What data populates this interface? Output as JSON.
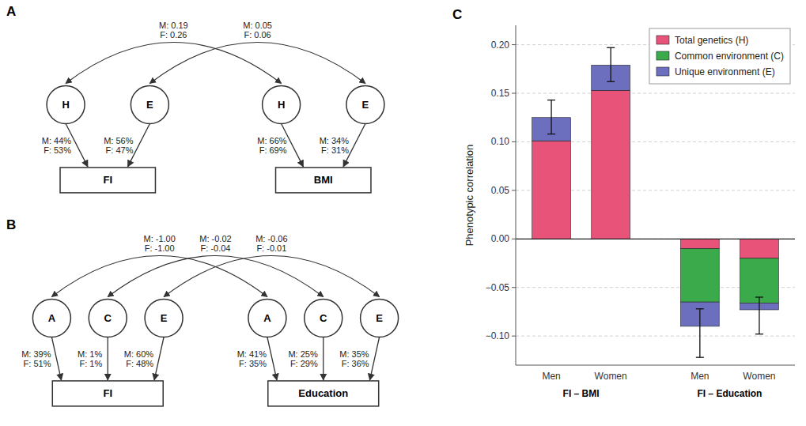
{
  "chart_data": [
    {
      "type": "path_diagram",
      "title": "A",
      "groups": [
        {
          "observed": "FI",
          "latent": [
            "H",
            "E"
          ],
          "latent_labels": [
            "M: 44%\nF: 53%",
            "M: 56%\nF: 47%"
          ]
        },
        {
          "observed": "BMI",
          "latent": [
            "H",
            "E"
          ],
          "latent_labels": [
            "M: 66%\nF: 69%",
            "M: 34%\nF: 31%"
          ]
        }
      ],
      "correlations": [
        "M: 0.19\nF: 0.26",
        "M: 0.05\nF: 0.06"
      ]
    },
    {
      "type": "path_diagram",
      "title": "B",
      "groups": [
        {
          "observed": "FI",
          "latent": [
            "A",
            "C",
            "E"
          ],
          "latent_labels": [
            "M: 39%\nF: 51%",
            "M: 1%\nF: 1%",
            "M: 60%\nF: 48%"
          ]
        },
        {
          "observed": "Education",
          "latent": [
            "A",
            "C",
            "E"
          ],
          "latent_labels": [
            "M: 41%\nF: 35%",
            "M: 25%\nF: 29%",
            "M: 35%\nF: 36%"
          ]
        }
      ],
      "correlations": [
        "M: -1.00\nF: -1.00",
        "M: -0.02\nF: -0.04",
        "M: -0.06\nF: -0.01"
      ]
    },
    {
      "type": "bar",
      "title": "C",
      "stacked": true,
      "categories": [
        "Men",
        "Women",
        "Men",
        "Women"
      ],
      "category_groups": [
        "FI – BMI",
        "FI – BMI",
        "FI – Education",
        "FI – Education"
      ],
      "ylabel": "Phenotypic correlation",
      "series": [
        {
          "name": "Total genetics (H)",
          "color": "#E8537A",
          "values": [
            0.101,
            0.153,
            -0.01,
            -0.02
          ]
        },
        {
          "name": "Common environment (C)",
          "color": "#3BAA4A",
          "values": [
            0.0,
            0.0,
            -0.055,
            -0.046
          ]
        },
        {
          "name": "Unique environment (E)",
          "color": "#6B6FBD",
          "values": [
            0.024,
            0.026,
            -0.025,
            -0.007
          ]
        }
      ],
      "totals": [
        0.125,
        0.179,
        -0.09,
        -0.073
      ],
      "ci_low": [
        0.108,
        0.162,
        -0.072,
        -0.06
      ],
      "ci_high": [
        0.143,
        0.197,
        -0.122,
        -0.098
      ],
      "ylim": [
        -0.13,
        0.22
      ],
      "yticks": [
        {
          "value": -0.1,
          "label": "−0.10"
        },
        {
          "value": -0.05,
          "label": "−0.05"
        },
        {
          "value": 0.0,
          "label": "0.00"
        },
        {
          "value": 0.05,
          "label": "0.05"
        },
        {
          "value": 0.1,
          "label": "0.10"
        },
        {
          "value": 0.15,
          "label": "0.15"
        },
        {
          "value": 0.2,
          "label": "0.20"
        }
      ],
      "grid": true,
      "legend": "upper right"
    }
  ]
}
